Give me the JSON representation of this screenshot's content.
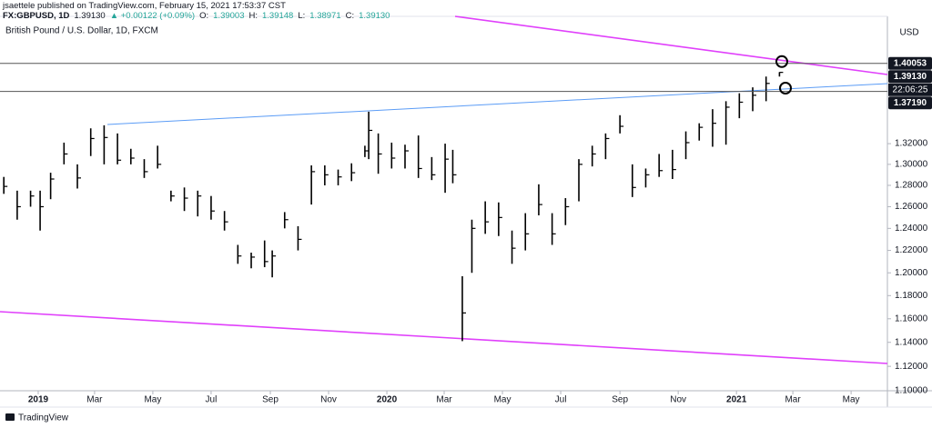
{
  "header": {
    "author_line": "jsaettele published on TradingView.com, February 15, 2021 17:53:37 CST",
    "symbol": "FX:GBPUSD, 1D",
    "last": "1.39130",
    "change": "▲ +0.00122 (+0.09%)",
    "ohlc": [
      {
        "label": "O:",
        "value": "1.39003"
      },
      {
        "label": "H:",
        "value": "1.39148"
      },
      {
        "label": "L:",
        "value": "1.38971"
      },
      {
        "label": "C:",
        "value": "1.39130"
      }
    ]
  },
  "chart_data": {
    "type": "ohlc",
    "title": "British Pound / U.S. Dollar, 1D, FXCM",
    "y_unit": "USD",
    "color": "#000000",
    "log_scale": true,
    "grid": false,
    "x": [
      "2018-11-26",
      "2018-12-10",
      "2018-12-24",
      "2019-01-03",
      "2019-01-14",
      "2019-01-28",
      "2019-02-11",
      "2019-02-25",
      "2019-03-11",
      "2019-03-25",
      "2019-04-08",
      "2019-04-22",
      "2019-05-06",
      "2019-05-20",
      "2019-06-03",
      "2019-06-17",
      "2019-07-01",
      "2019-07-15",
      "2019-07-29",
      "2019-08-12",
      "2019-08-26",
      "2019-09-03",
      "2019-09-16",
      "2019-09-30",
      "2019-10-14",
      "2019-10-28",
      "2019-11-11",
      "2019-11-25",
      "2019-12-09",
      "2019-12-13",
      "2019-12-23",
      "2020-01-06",
      "2020-01-20",
      "2020-02-03",
      "2020-02-17",
      "2020-03-02",
      "2020-03-10",
      "2020-03-20",
      "2020-03-30",
      "2020-04-13",
      "2020-04-27",
      "2020-05-11",
      "2020-05-25",
      "2020-06-08",
      "2020-06-22",
      "2020-07-06",
      "2020-07-20",
      "2020-08-03",
      "2020-08-17",
      "2020-09-01",
      "2020-09-14",
      "2020-09-28",
      "2020-10-12",
      "2020-10-26",
      "2020-11-09",
      "2020-11-23",
      "2020-12-07",
      "2020-12-21",
      "2021-01-04",
      "2021-01-18",
      "2021-02-01",
      "2021-02-15"
    ],
    "high": [
      1.288,
      1.275,
      1.275,
      1.275,
      1.292,
      1.321,
      1.3,
      1.335,
      1.338,
      1.33,
      1.315,
      1.305,
      1.318,
      1.275,
      1.278,
      1.275,
      1.27,
      1.256,
      1.225,
      1.218,
      1.229,
      1.22,
      1.255,
      1.242,
      1.299,
      1.299,
      1.295,
      1.301,
      1.318,
      1.3515,
      1.33,
      1.321,
      1.319,
      1.328,
      1.307,
      1.32,
      1.314,
      1.197,
      1.248,
      1.265,
      1.264,
      1.238,
      1.254,
      1.281,
      1.254,
      1.268,
      1.305,
      1.318,
      1.33,
      1.348,
      1.3,
      1.296,
      1.31,
      1.314,
      1.332,
      1.34,
      1.354,
      1.362,
      1.37,
      1.376,
      1.387,
      1.3915
    ],
    "low": [
      1.272,
      1.248,
      1.26,
      1.238,
      1.267,
      1.3,
      1.277,
      1.308,
      1.3,
      1.3,
      1.3,
      1.287,
      1.296,
      1.265,
      1.256,
      1.251,
      1.248,
      1.238,
      1.208,
      1.204,
      1.205,
      1.196,
      1.24,
      1.22,
      1.262,
      1.28,
      1.28,
      1.284,
      1.307,
      1.305,
      1.291,
      1.296,
      1.296,
      1.287,
      1.285,
      1.273,
      1.282,
      1.141,
      1.2,
      1.235,
      1.233,
      1.208,
      1.22,
      1.252,
      1.225,
      1.243,
      1.265,
      1.298,
      1.305,
      1.33,
      1.269,
      1.278,
      1.288,
      1.286,
      1.305,
      1.323,
      1.317,
      1.319,
      1.345,
      1.352,
      1.362,
      1.387
    ],
    "close": [
      1.279,
      1.26,
      1.27,
      1.26,
      1.286,
      1.31,
      1.287,
      1.325,
      1.326,
      1.304,
      1.306,
      1.293,
      1.3,
      1.27,
      1.268,
      1.27,
      1.256,
      1.246,
      1.215,
      1.214,
      1.21,
      1.215,
      1.248,
      1.23,
      1.293,
      1.29,
      1.288,
      1.292,
      1.313,
      1.333,
      1.31,
      1.306,
      1.313,
      1.296,
      1.29,
      1.305,
      1.29,
      1.165,
      1.24,
      1.246,
      1.25,
      1.222,
      1.235,
      1.262,
      1.235,
      1.26,
      1.3,
      1.31,
      1.325,
      1.337,
      1.278,
      1.29,
      1.294,
      1.295,
      1.321,
      1.336,
      1.34,
      1.356,
      1.361,
      1.368,
      1.38,
      1.3913
    ],
    "xlim": [
      "2018-11-22",
      "2021-06-08"
    ],
    "xticks": [
      {
        "value": "2019-01-01",
        "label": "2019"
      },
      {
        "value": "2019-03-01",
        "label": "Mar"
      },
      {
        "value": "2019-05-01",
        "label": "May"
      },
      {
        "value": "2019-07-01",
        "label": "Jul"
      },
      {
        "value": "2019-09-01",
        "label": "Sep"
      },
      {
        "value": "2019-11-01",
        "label": "Nov"
      },
      {
        "value": "2020-01-01",
        "label": "2020"
      },
      {
        "value": "2020-03-01",
        "label": "Mar"
      },
      {
        "value": "2020-05-01",
        "label": "May"
      },
      {
        "value": "2020-07-01",
        "label": "Jul"
      },
      {
        "value": "2020-09-01",
        "label": "Sep"
      },
      {
        "value": "2020-11-01",
        "label": "Nov"
      },
      {
        "value": "2021-01-01",
        "label": "2021"
      },
      {
        "value": "2021-03-01",
        "label": "Mar"
      },
      {
        "value": "2021-05-01",
        "label": "May"
      }
    ],
    "ylim": [
      1.1,
      1.45
    ],
    "yticks": [
      {
        "value": 1.1,
        "label": "1.10000"
      },
      {
        "value": 1.12,
        "label": "1.12000"
      },
      {
        "value": 1.14,
        "label": "1.14000"
      },
      {
        "value": 1.16,
        "label": "1.16000"
      },
      {
        "value": 1.18,
        "label": "1.18000"
      },
      {
        "value": 1.2,
        "label": "1.20000"
      },
      {
        "value": 1.22,
        "label": "1.22000"
      },
      {
        "value": 1.24,
        "label": "1.24000"
      },
      {
        "value": 1.26,
        "label": "1.26000"
      },
      {
        "value": 1.28,
        "label": "1.28000"
      },
      {
        "value": 1.3,
        "label": "1.30000"
      },
      {
        "value": 1.32,
        "label": "1.32000"
      }
    ],
    "price_lines": [
      {
        "value": 1.40053,
        "label": "1.40053"
      },
      {
        "value": 1.3719,
        "label": "1.37190"
      }
    ],
    "last_price": {
      "value": 1.3913,
      "label": "1.39130"
    },
    "countdown": "22:06:25"
  },
  "footer": {
    "brand": "TradingView"
  }
}
